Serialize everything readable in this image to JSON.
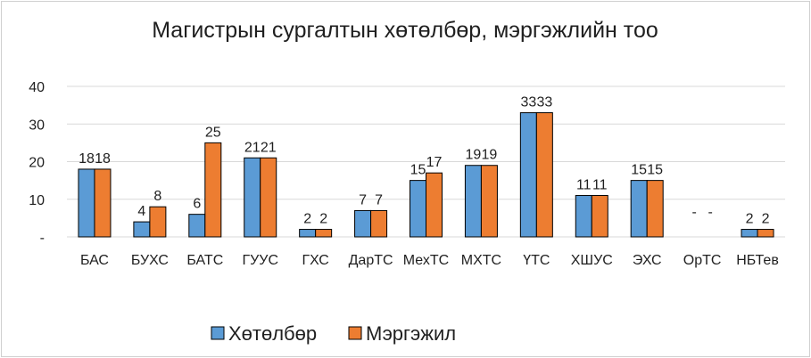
{
  "chart_data": {
    "type": "bar",
    "title": "Магистрын сургалтын хөтөлбөр, мэргэжлийн тоо",
    "categories": [
      "БАС",
      "БУХС",
      "БАТС",
      "ГУУС",
      "ГХС",
      "ДарТС",
      "МехТС",
      "МХТС",
      "ҮТС",
      "ХШУС",
      "ЭХС",
      "ОрТС",
      "НБТев"
    ],
    "series": [
      {
        "name": "Хөтөлбөр",
        "color": "#5b9bd5",
        "values": [
          18,
          4,
          6,
          21,
          2,
          7,
          15,
          19,
          33,
          11,
          15,
          0,
          2
        ],
        "labels": [
          "18",
          "4",
          "6",
          "21",
          "2",
          "7",
          "15",
          "19",
          "33",
          "11",
          "15",
          "-",
          "2"
        ]
      },
      {
        "name": "Мэргэжил",
        "color": "#ed7d31",
        "values": [
          18,
          8,
          25,
          21,
          2,
          7,
          17,
          19,
          33,
          11,
          15,
          0,
          2
        ],
        "labels": [
          "18",
          "8",
          "25",
          "21",
          "2",
          "7",
          "17",
          "19",
          "33",
          "11",
          "15",
          "-",
          "2"
        ]
      }
    ],
    "ylim": [
      0,
      40
    ],
    "yticks": [
      "-",
      "10",
      "20",
      "30",
      "40"
    ],
    "grid": true,
    "legend": "bottom"
  }
}
